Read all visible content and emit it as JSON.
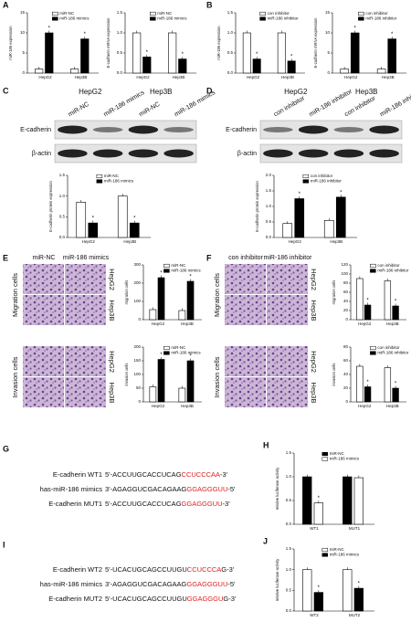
{
  "panel_letters": [
    "A",
    "B",
    "C",
    "D",
    "E",
    "F",
    "G",
    "H",
    "I",
    "J"
  ],
  "chart_data": [
    {
      "type": "bar",
      "ylabel": "miR-186 expression",
      "categories": [
        "HepG2",
        "Hep3B"
      ],
      "series": [
        {
          "name": "miR-NC",
          "color": "#ffffff",
          "values": [
            1,
            1
          ]
        },
        {
          "name": "miR-186 mimics",
          "color": "#000000",
          "values": [
            10,
            8.5
          ]
        }
      ],
      "ylim": [
        0,
        15
      ],
      "yticks": [
        0,
        5,
        10,
        15
      ],
      "annotation": "*"
    },
    {
      "type": "bar",
      "ylabel": "E-cadherin mRNA expression",
      "categories": [
        "HepG2",
        "Hep3B"
      ],
      "series": [
        {
          "name": "miR-NC",
          "color": "#ffffff",
          "values": [
            1,
            1
          ]
        },
        {
          "name": "miR-186 mimics",
          "color": "#000000",
          "values": [
            0.4,
            0.35
          ]
        }
      ],
      "ylim": [
        0,
        1.5
      ],
      "yticks": [
        {
          "value": 0,
          "label": "0.0"
        },
        0.5,
        {
          "value": 1,
          "label": "1.0"
        },
        1.5
      ],
      "annotation": "*"
    },
    {
      "type": "bar",
      "ylabel": "miR-186 expression",
      "categories": [
        "HepG2",
        "Hep3B"
      ],
      "series": [
        {
          "name": "con inhibitor",
          "color": "#ffffff",
          "values": [
            1,
            1
          ]
        },
        {
          "name": "miR-186 inhibitor",
          "color": "#000000",
          "values": [
            0.35,
            0.3
          ]
        }
      ],
      "ylim": [
        0,
        1.5
      ],
      "yticks": [
        {
          "value": 0,
          "label": "0.0"
        },
        0.5,
        {
          "value": 1,
          "label": "1.0"
        },
        1.5
      ],
      "annotation": "*"
    },
    {
      "type": "bar",
      "ylabel": "E-cadherin mRNA expression",
      "categories": [
        "HepG2",
        "Hep3B"
      ],
      "series": [
        {
          "name": "con inhibitor",
          "color": "#ffffff",
          "values": [
            1,
            1
          ]
        },
        {
          "name": "miR-186 inhibitor",
          "color": "#000000",
          "values": [
            10,
            8.5
          ]
        }
      ],
      "ylim": [
        0,
        15
      ],
      "yticks": [
        0,
        5,
        10,
        15
      ],
      "annotation": "*"
    },
    {
      "type": "bar",
      "ylabel": "E-cadherin protein expression",
      "categories": [
        "HepG2",
        "Hep3B"
      ],
      "series": [
        {
          "name": "miR-NC",
          "color": "#ffffff",
          "values": [
            0.85,
            1
          ]
        },
        {
          "name": "miR-186 mimics",
          "color": "#000000",
          "values": [
            0.35,
            0.35
          ]
        }
      ],
      "ylim": [
        0,
        1.5
      ],
      "yticks": [
        {
          "value": 0,
          "label": "0.0"
        },
        0.5,
        {
          "value": 1,
          "label": "1.0"
        },
        1.5
      ],
      "annotation": "*"
    },
    {
      "type": "bar",
      "ylabel": "E-cadherin protein expression",
      "categories": [
        "HepG2",
        "Hep3B"
      ],
      "series": [
        {
          "name": "con inhibitor",
          "color": "#ffffff",
          "values": [
            0.45,
            0.55
          ]
        },
        {
          "name": "miR-186 inhibitor",
          "color": "#000000",
          "values": [
            1.25,
            1.3
          ]
        }
      ],
      "ylim": [
        0,
        2
      ],
      "yticks": [
        {
          "value": 0,
          "label": "0.0"
        },
        0.5,
        {
          "value": 1,
          "label": "1.0"
        },
        1.5,
        {
          "value": 2,
          "label": "2.0"
        }
      ],
      "annotation": "*"
    },
    {
      "type": "bar",
      "ylabel": "migration cells",
      "categories": [
        "HepG2",
        "Hep3B"
      ],
      "series": [
        {
          "name": "miR-NC",
          "color": "#ffffff",
          "values": [
            55,
            50
          ]
        },
        {
          "name": "miR-186 mimics",
          "color": "#000000",
          "values": [
            230,
            210
          ]
        }
      ],
      "ylim": [
        0,
        300
      ],
      "yticks": [
        0,
        100,
        200,
        300
      ],
      "annotation": "*"
    },
    {
      "type": "bar",
      "ylabel": "invasion cells",
      "categories": [
        "HepG2",
        "Hep3B"
      ],
      "series": [
        {
          "name": "miR-NC",
          "color": "#ffffff",
          "values": [
            55,
            50
          ]
        },
        {
          "name": "miR-186 mimics",
          "color": "#000000",
          "values": [
            155,
            150
          ]
        }
      ],
      "ylim": [
        0,
        200
      ],
      "yticks": [
        0,
        50,
        100,
        150,
        200
      ],
      "annotation": "*"
    },
    {
      "type": "bar",
      "ylabel": "migration cells",
      "categories": [
        "HepG2",
        "Hep3B"
      ],
      "series": [
        {
          "name": "con inhibitor",
          "color": "#ffffff",
          "values": [
            90,
            85
          ]
        },
        {
          "name": "miR-186 inhibitor",
          "color": "#000000",
          "values": [
            32,
            30
          ]
        }
      ],
      "ylim": [
        0,
        120
      ],
      "yticks": [
        0,
        20,
        40,
        60,
        80,
        100,
        120
      ],
      "annotation": "*"
    },
    {
      "type": "bar",
      "ylabel": "invasion cells",
      "categories": [
        "HepG2",
        "Hep3B"
      ],
      "series": [
        {
          "name": "con inhibitor",
          "color": "#ffffff",
          "values": [
            52,
            50
          ]
        },
        {
          "name": "miR-186 inhibitor",
          "color": "#000000",
          "values": [
            22,
            20
          ]
        }
      ],
      "ylim": [
        0,
        80
      ],
      "yticks": [
        0,
        20,
        40,
        60,
        80
      ],
      "annotation": "*"
    },
    {
      "type": "bar",
      "ylabel": "relative luciferase activity",
      "categories": [
        "WT1",
        "MUT1"
      ],
      "series": [
        {
          "name": "miR-NC",
          "color": "#000000",
          "values": [
            1,
            1
          ]
        },
        {
          "name": "miR-186 mimics",
          "color": "#ffffff",
          "values": [
            0.45,
            0.98
          ]
        }
      ],
      "ylim": [
        0,
        1.5
      ],
      "yticks": [
        {
          "value": 0,
          "label": "0.0"
        },
        0.5,
        {
          "value": 1,
          "label": "1.0"
        },
        1.5
      ],
      "annotation": "*"
    },
    {
      "type": "bar",
      "ylabel": "relative luciferase activity",
      "categories": [
        "WT2",
        "MUT2"
      ],
      "series": [
        {
          "name": "miR-NC",
          "color": "#ffffff",
          "values": [
            1,
            1
          ]
        },
        {
          "name": "miR-186 mimics",
          "color": "#000000",
          "values": [
            0.45,
            0.55
          ]
        }
      ],
      "ylim": [
        0,
        1.5
      ],
      "yticks": [
        {
          "value": 0,
          "label": "0.0"
        },
        0.5,
        {
          "value": 1,
          "label": "1.0"
        },
        1.5
      ],
      "annotation": "*"
    }
  ],
  "blots": [
    {
      "cell_lines": [
        "HepG2",
        "Hep3B"
      ],
      "lanes": [
        "miR-NC",
        "miR-186 mimics",
        "miR-NC",
        "miR-186 mimics"
      ],
      "rows": [
        "E-cadherin",
        "β-actin"
      ]
    },
    {
      "cell_lines": [
        "HepG2",
        "Hep3B"
      ],
      "lanes": [
        "con inhibitor",
        "miR-186 inhibitor",
        "con inhibitor",
        "miR-186 inhibitor"
      ],
      "rows": [
        "E-cadherin",
        "β-actin"
      ]
    }
  ],
  "micrographs": [
    {
      "columns": [
        "miR-NC",
        "miR-186 mimics"
      ],
      "rows": [
        "Migration cells",
        "Invasion cells"
      ],
      "cell_lines": [
        "HepG2",
        "Hep3B"
      ]
    },
    {
      "columns": [
        "con inhibitor",
        "miR-186 inhibitor"
      ],
      "rows": [
        "Migration cells",
        "Invasion cells"
      ],
      "cell_lines": [
        "HepG2",
        "Hep3B"
      ]
    }
  ],
  "sequences": [
    [
      {
        "label": "E-cadherin WT1",
        "parts": [
          "5'-ACCUUGCACCUCAG",
          "CCUCCCAA",
          "-3'"
        ]
      },
      {
        "label": "has-miR-186 mimics",
        "parts": [
          "3'-AGAGGUCGACAGAAG",
          "GGAGGGUU",
          "-5'"
        ]
      },
      {
        "label": "E-cadherin MUT1",
        "parts": [
          "5'-ACCUUGCACCUCAG",
          "GGAGGGUU",
          "-3'"
        ]
      }
    ],
    [
      {
        "label": "E-cadherin WT2",
        "parts": [
          "5'-UCACUGCAGCCUUGU",
          "CCUCCCA",
          "G-3'"
        ]
      },
      {
        "label": "has-miR-186 mimics",
        "parts": [
          "3'-AGAGGUCGACAGAAG",
          "GGAGGGUU",
          "-5'"
        ]
      },
      {
        "label": "E-cadherin MUT2",
        "parts": [
          "5'-UCACUGCAGCCUUGU",
          "GGAGGGU",
          "G-3'"
        ]
      }
    ]
  ]
}
